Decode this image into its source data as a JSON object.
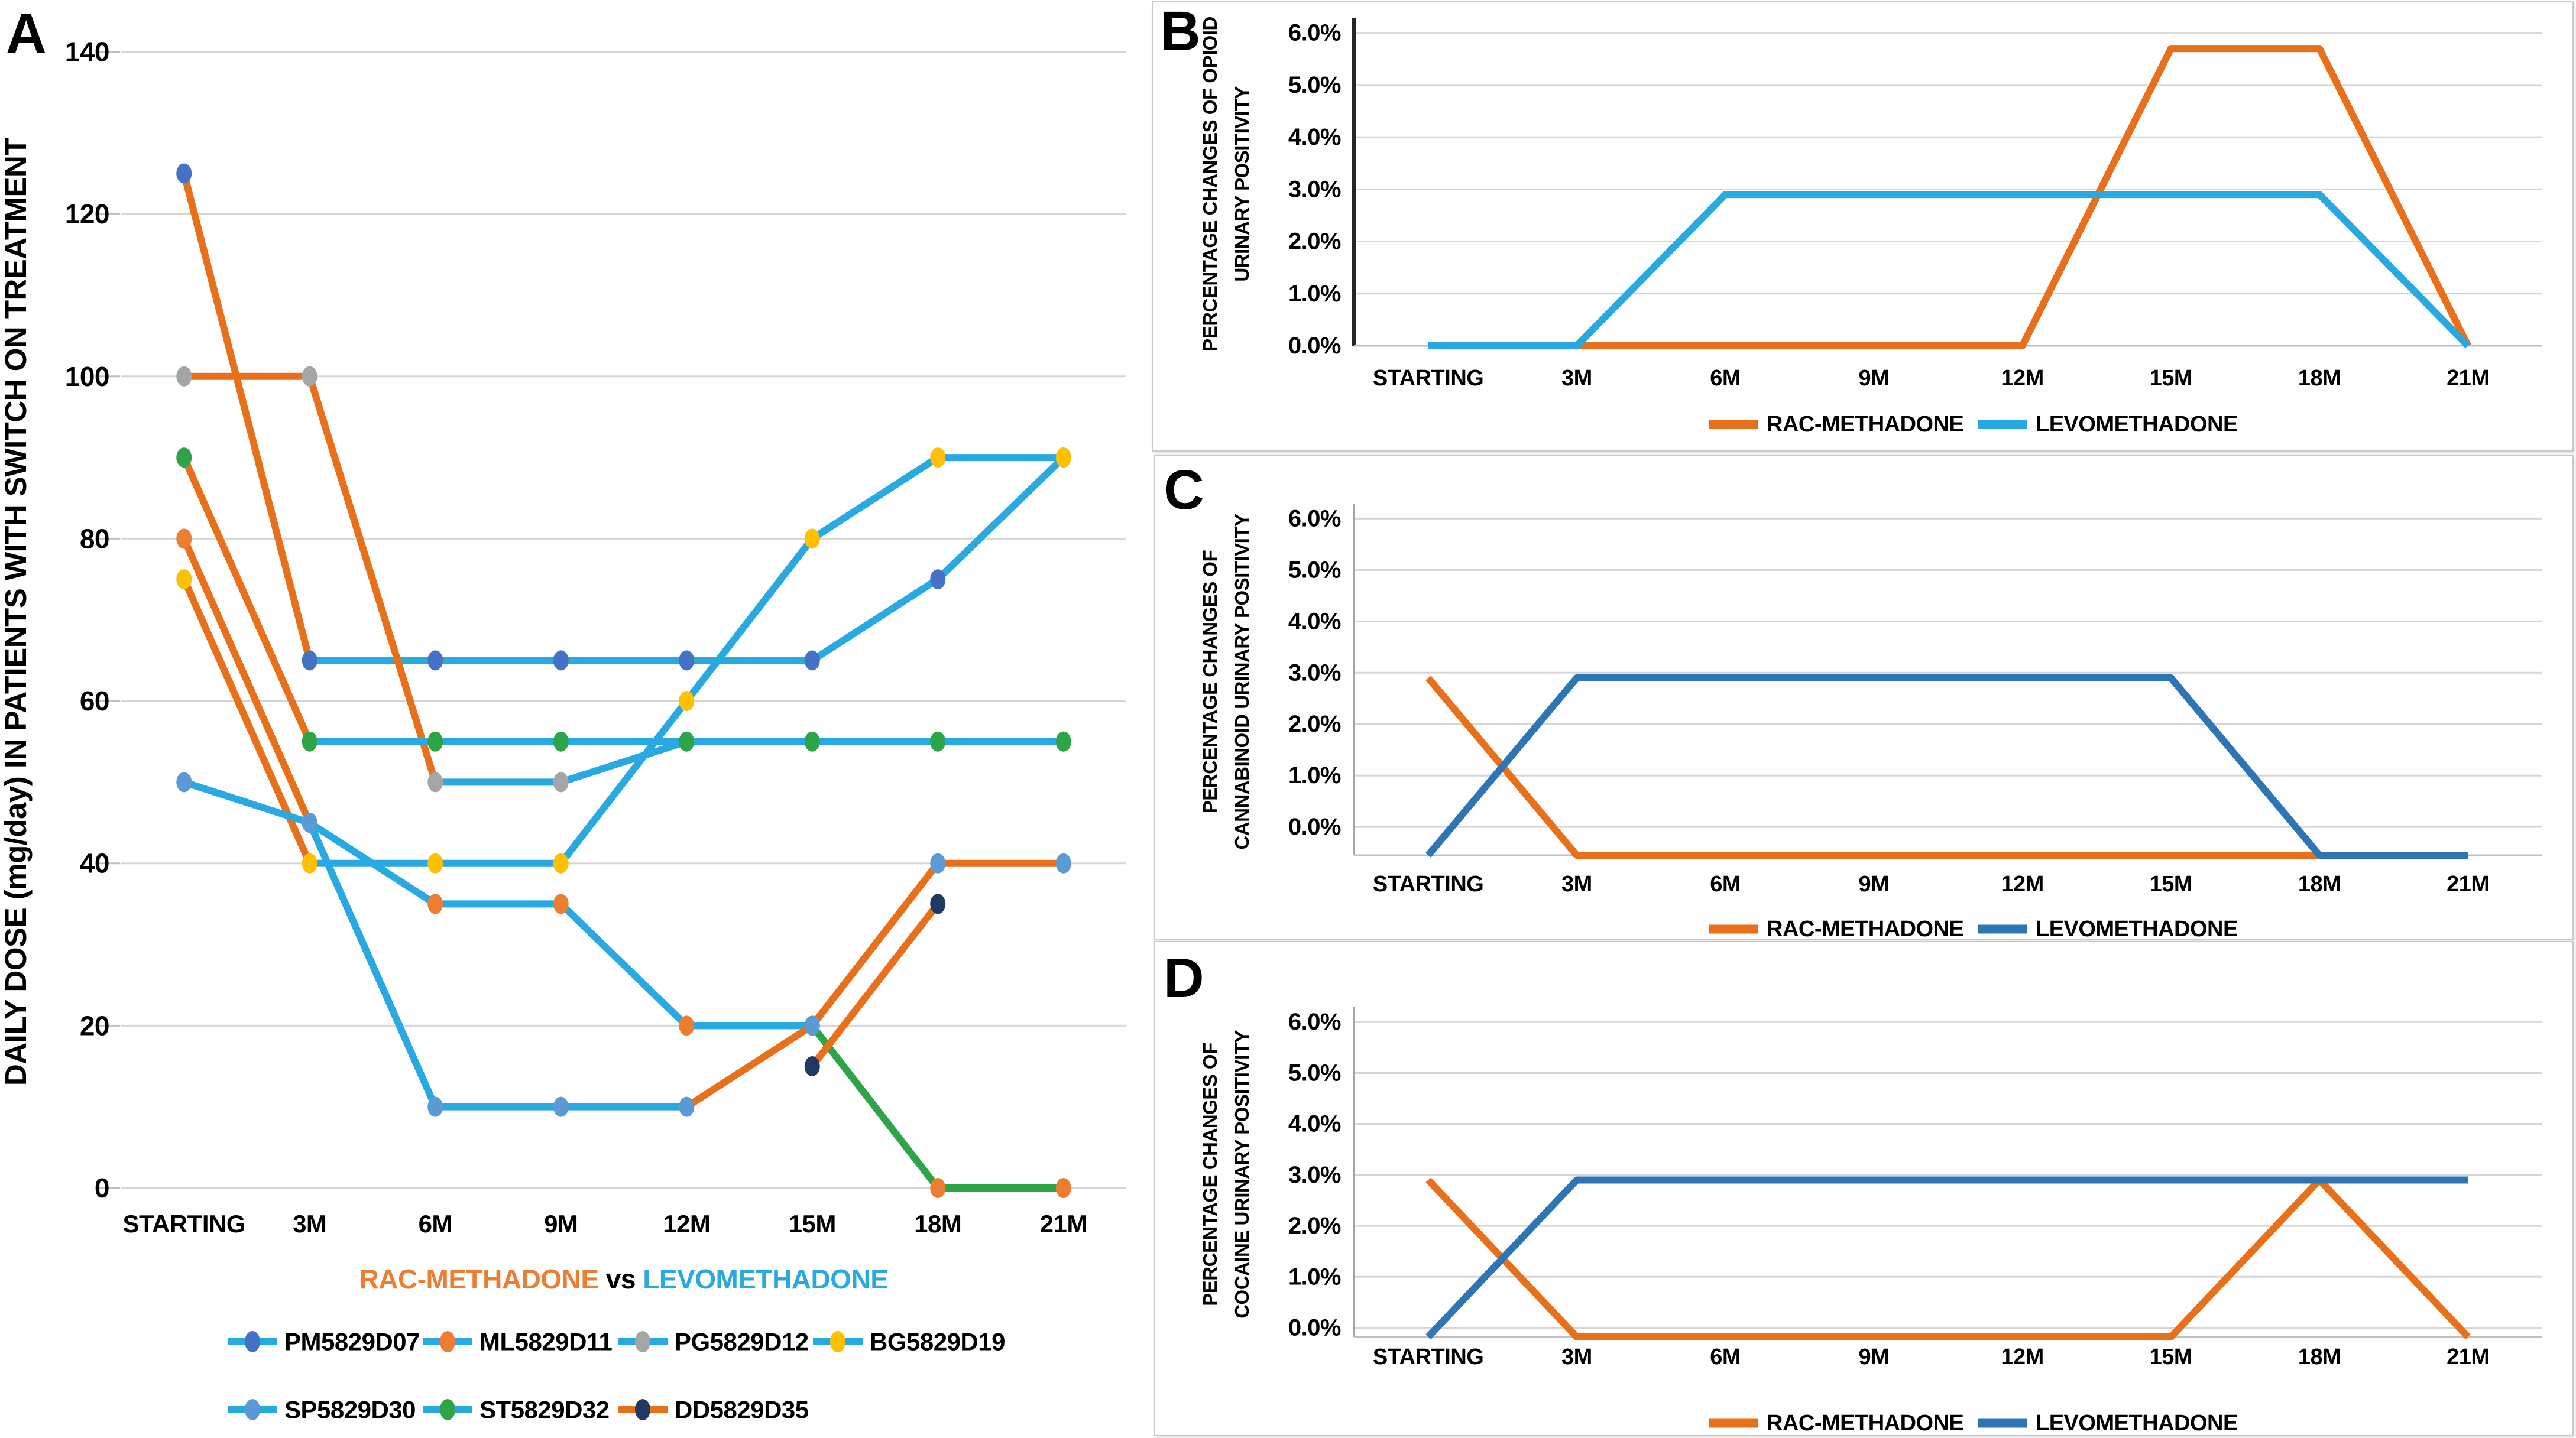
{
  "colors": {
    "text": "#000000",
    "grid": "#D6D6D6",
    "tick": "#BFBFBF",
    "card_border": "#C9C9C9",
    "axis_dark": "#262626",
    "axis_gray": "#A6A6A6",
    "orange_line": "#E8701A",
    "orange_text": "#ED7D31",
    "lb": "#29A9E1",
    "green": "#2EA449",
    "blue_cd": "#2E75B6",
    "m_pm": "#4472C4",
    "m_ml": "#ED7D31",
    "m_pg": "#A5A5A5",
    "m_bg": "#FFC000",
    "m_sp": "#5B9BD5",
    "m_st": "#2EA449",
    "m_dd": "#1F3864"
  },
  "chart_data": [
    {
      "id": "A",
      "type": "line",
      "panel_label": "A",
      "ylabel": "DAILY DOSE (mg/day) IN PATIENTS WITH SWITCH ON TREATMENT",
      "categories": [
        "STARTING",
        "3M",
        "6M",
        "9M",
        "12M",
        "15M",
        "18M",
        "21M"
      ],
      "ylim": [
        0,
        140
      ],
      "grid": true,
      "legend_position": "bottom",
      "yticks": [
        {
          "v": 140,
          "label": "140"
        },
        {
          "v": 120,
          "label": "120"
        },
        {
          "v": 100,
          "label": "100"
        },
        {
          "v": 80,
          "label": "80"
        },
        {
          "v": 60,
          "label": "60"
        },
        {
          "v": 40,
          "label": "40"
        },
        {
          "v": 20,
          "label": "20"
        },
        {
          "v": 0,
          "label": "0"
        }
      ],
      "subtitle_parts": [
        {
          "text": "RAC-METHADONE",
          "color_key": "orange_text"
        },
        {
          "text": " vs ",
          "color_key": "text"
        },
        {
          "text": "LEVOMETHADONE",
          "color_key": "lb"
        }
      ],
      "series": [
        {
          "name": "PM5829D07",
          "marker_key": "m_pm",
          "values": [
            125,
            65,
            65,
            65,
            65,
            65,
            75,
            90
          ],
          "segment_color_keys": [
            "orange_line",
            "lb",
            "lb",
            "lb",
            "lb",
            "lb",
            "lb"
          ]
        },
        {
          "name": "ML5829D11",
          "marker_key": "m_ml",
          "values": [
            80,
            45,
            35,
            35,
            20,
            20,
            0,
            0
          ],
          "segment_color_keys": [
            "orange_line",
            "lb",
            "lb",
            "lb",
            "lb",
            "green",
            "green"
          ]
        },
        {
          "name": "PG5829D12",
          "marker_key": "m_pg",
          "values": [
            100,
            100,
            50,
            50,
            55,
            55,
            55,
            55
          ],
          "segment_color_keys": [
            "orange_line",
            "orange_line",
            "lb",
            "lb",
            "lb",
            "lb",
            "lb"
          ]
        },
        {
          "name": "BG5829D19",
          "marker_key": "m_bg",
          "values": [
            75,
            40,
            40,
            40,
            60,
            80,
            90,
            90
          ],
          "segment_color_keys": [
            "orange_line",
            "lb",
            "lb",
            "lb",
            "lb",
            "lb",
            "lb"
          ]
        },
        {
          "name": "SP5829D30",
          "marker_key": "m_sp",
          "values": [
            50,
            45,
            10,
            10,
            10,
            20,
            40,
            40
          ],
          "segment_color_keys": [
            "lb",
            "lb",
            "lb",
            "lb",
            "orange_line",
            "orange_line",
            "orange_line"
          ]
        },
        {
          "name": "ST5829D32",
          "marker_key": "m_st",
          "values": [
            90,
            55,
            55,
            55,
            55,
            55,
            55,
            55
          ],
          "segment_color_keys": [
            "orange_line",
            "lb",
            "lb",
            "lb",
            "lb",
            "lb",
            "lb"
          ]
        },
        {
          "name": "DD5829D35",
          "marker_key": "m_dd",
          "values": [
            null,
            null,
            null,
            null,
            null,
            15,
            35,
            null
          ],
          "segment_color_keys": [
            null,
            null,
            null,
            null,
            null,
            "orange_line",
            null
          ]
        }
      ],
      "legend_rows": [
        [
          {
            "label": "PM5829D07",
            "line_key": "lb",
            "marker_key": "m_pm"
          },
          {
            "label": "ML5829D11",
            "line_key": "lb",
            "marker_key": "m_ml"
          },
          {
            "label": "PG5829D12",
            "line_key": "lb",
            "marker_key": "m_pg"
          },
          {
            "label": "BG5829D19",
            "line_key": "lb",
            "marker_key": "m_bg"
          }
        ],
        [
          {
            "label": "SP5829D30",
            "line_key": "lb",
            "marker_key": "m_sp"
          },
          {
            "label": "ST5829D32",
            "line_key": "lb",
            "marker_key": "m_st"
          },
          {
            "label": "DD5829D35",
            "line_key": "orange_line",
            "marker_key": "m_dd"
          }
        ]
      ]
    },
    {
      "id": "B",
      "type": "line",
      "panel_label": "B",
      "ylabel_lines": [
        "PERCENTAGE CHANGES OF OPIOID",
        "URINARY POSITIVITY"
      ],
      "categories": [
        "STARTING",
        "3M",
        "6M",
        "9M",
        "12M",
        "15M",
        "18M",
        "21M"
      ],
      "ylim": [
        0,
        6
      ],
      "grid": true,
      "legend_position": "bottom",
      "yticks": [
        {
          "v": 6,
          "label": "6.0%"
        },
        {
          "v": 5,
          "label": "5.0%"
        },
        {
          "v": 4,
          "label": "4.0%"
        },
        {
          "v": 3,
          "label": "3.0%"
        },
        {
          "v": 2,
          "label": "2.0%"
        },
        {
          "v": 1,
          "label": "1.0%"
        },
        {
          "v": 0,
          "label": "0.0%"
        }
      ],
      "series": [
        {
          "name": "RAC-METHADONE",
          "color_key": "orange_line",
          "values": [
            0,
            0,
            0,
            0,
            0,
            5.7,
            5.7,
            0
          ]
        },
        {
          "name": "LEVOMETHADONE",
          "color_key": "lb",
          "values": [
            0,
            0,
            2.9,
            2.9,
            2.9,
            2.9,
            2.9,
            0
          ]
        }
      ],
      "legend": [
        {
          "label": "RAC-METHADONE",
          "color_key": "orange_line"
        },
        {
          "label": "LEVOMETHADONE",
          "color_key": "lb"
        }
      ]
    },
    {
      "id": "C",
      "type": "line",
      "panel_label": "C",
      "ylabel_lines": [
        "PERCENTAGE CHANGES OF",
        "CANNABINOID URINARY POSITIVITY"
      ],
      "categories": [
        "STARTING",
        "3M",
        "6M",
        "9M",
        "12M",
        "15M",
        "18M",
        "21M"
      ],
      "ylim": [
        0,
        6
      ],
      "grid": true,
      "legend_position": "bottom",
      "yticks": [
        {
          "v": 6,
          "label": "6.0%"
        },
        {
          "v": 5,
          "label": "5.0%"
        },
        {
          "v": 4,
          "label": "4.0%"
        },
        {
          "v": 3,
          "label": "3.0%"
        },
        {
          "v": 2,
          "label": "2.0%"
        },
        {
          "v": 1,
          "label": "1.0%"
        },
        {
          "v": 0,
          "label": "0.0%"
        }
      ],
      "series": [
        {
          "name": "RAC-METHADONE",
          "color_key": "orange_line",
          "values": [
            2.9,
            0,
            0,
            0,
            0,
            0,
            0,
            0
          ]
        },
        {
          "name": "LEVOMETHADONE",
          "color_key": "blue_cd",
          "values": [
            0,
            2.9,
            2.9,
            2.9,
            2.9,
            2.9,
            0,
            0
          ]
        }
      ],
      "legend": [
        {
          "label": "RAC-METHADONE",
          "color_key": "orange_line"
        },
        {
          "label": "LEVOMETHADONE",
          "color_key": "blue_cd"
        }
      ]
    },
    {
      "id": "D",
      "type": "line",
      "panel_label": "D",
      "ylabel_lines": [
        "PERCENTAGE CHANGES OF",
        "COCAINE URINARY POSITIVITY"
      ],
      "categories": [
        "STARTING",
        "3M",
        "6M",
        "9M",
        "12M",
        "15M",
        "18M",
        "21M"
      ],
      "ylim": [
        0,
        6
      ],
      "grid": true,
      "legend_position": "bottom",
      "yticks": [
        {
          "v": 6,
          "label": "6.0%"
        },
        {
          "v": 5,
          "label": "5.0%"
        },
        {
          "v": 4,
          "label": "4.0%"
        },
        {
          "v": 3,
          "label": "3.0%"
        },
        {
          "v": 2,
          "label": "2.0%"
        },
        {
          "v": 1,
          "label": "1.0%"
        },
        {
          "v": 0,
          "label": "0.0%"
        }
      ],
      "series": [
        {
          "name": "RAC-METHADONE",
          "color_key": "orange_line",
          "values": [
            2.9,
            0,
            0,
            0,
            0,
            0,
            2.9,
            0
          ]
        },
        {
          "name": "LEVOMETHADONE",
          "color_key": "blue_cd",
          "values": [
            0,
            2.9,
            2.9,
            2.9,
            2.9,
            2.9,
            2.9,
            2.9
          ]
        }
      ],
      "legend": [
        {
          "label": "RAC-METHADONE",
          "color_key": "orange_line"
        },
        {
          "label": "LEVOMETHADONE",
          "color_key": "blue_cd"
        }
      ]
    }
  ]
}
